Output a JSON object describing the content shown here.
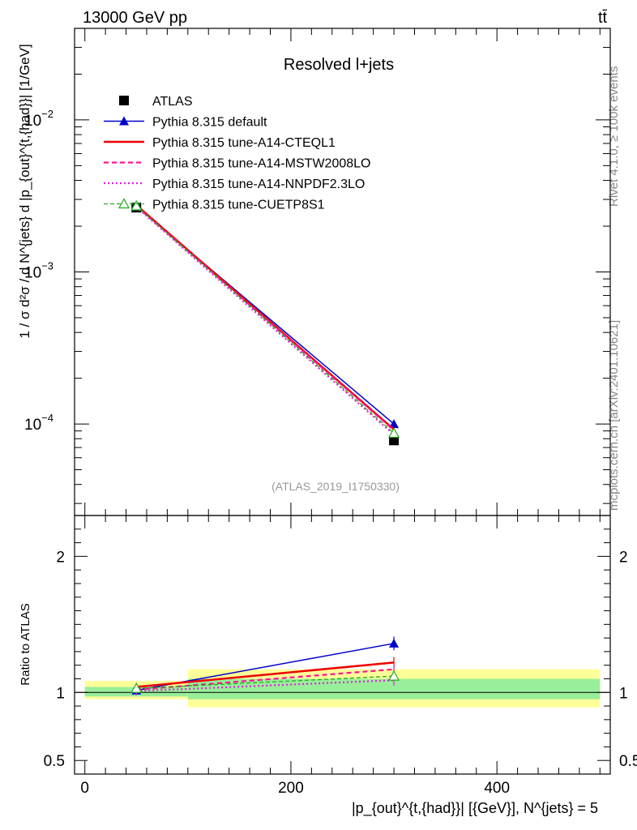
{
  "header": {
    "left": "13000 GeV pp",
    "right": "tt̄",
    "side_rivet": "Rivet 4.1.0, ≥ 100k events",
    "side_mcplots": "mcplots.cern.ch [arXiv:2401.10621]"
  },
  "chart_data": [
    {
      "type": "line",
      "panel": "main",
      "title": "Resolved l+jets",
      "watermark": "(ATLAS_2019_I1750330)",
      "ylabel": "1 / σ d²σ / d N^{jets} d |p_{out}^{t,{had}}| [1/GeV]",
      "yscale": "log",
      "ylim": [
        2.5e-05,
        0.04
      ],
      "yticks": [
        {
          "value": 0.0001,
          "base": "10",
          "exp": "−4"
        },
        {
          "value": 0.001,
          "base": "10",
          "exp": "−3"
        },
        {
          "value": 0.01,
          "base": "10",
          "exp": "−2"
        }
      ],
      "xlim": [
        -10,
        510
      ],
      "x": [
        50,
        300
      ],
      "series": [
        {
          "name": "ATLAS",
          "values": [
            0.00265,
            7.8e-05
          ],
          "color": "#000000"
        },
        {
          "name": "Pythia 8.315 default",
          "values": [
            0.0027,
            0.0001
          ],
          "color": "#0000cc"
        },
        {
          "name": "Pythia 8.315 tune-A14-CTEQL1",
          "values": [
            0.00275,
            9.2e-05
          ],
          "color": "#ee0000"
        },
        {
          "name": "Pythia 8.315 tune-A14-MSTW2008LO",
          "values": [
            0.0027,
            9.1e-05
          ],
          "color": "#ff1493"
        },
        {
          "name": "Pythia 8.315 tune-A14-NNPDF2.3LO",
          "values": [
            0.00268,
            8.5e-05
          ],
          "color": "#dd22dd"
        },
        {
          "name": "Pythia 8.315 tune-CUETP8S1",
          "values": [
            0.00272,
            8.7e-05
          ],
          "color": "#22aa22"
        }
      ]
    },
    {
      "type": "line",
      "panel": "ratio",
      "ylabel": "Ratio to ATLAS",
      "xlabel": "|p_{out}^{t,{had}}| [{GeV}], N^{jets} = 5",
      "ylim": [
        0.4,
        2.3
      ],
      "yticks": [
        {
          "value": 0.5,
          "label": "0.5"
        },
        {
          "value": 1,
          "label": "1"
        },
        {
          "value": 2,
          "label": "2"
        }
      ],
      "xticks": [
        {
          "value": 0,
          "label": "0"
        },
        {
          "value": 200,
          "label": "200"
        },
        {
          "value": 400,
          "label": "400"
        }
      ],
      "xlim": [
        -10,
        510
      ],
      "bands": [
        {
          "x": [
            0,
            100
          ],
          "stat": [
            0.97,
            1.04
          ],
          "total": [
            0.95,
            1.085
          ]
        },
        {
          "x": [
            100,
            500
          ],
          "stat": [
            0.95,
            1.1
          ],
          "total": [
            0.89,
            1.17
          ]
        }
      ],
      "x": [
        50,
        300
      ],
      "series": [
        {
          "name": "Pythia 8.315 default",
          "values": [
            1.015,
            1.36
          ],
          "errors": [
            0.03,
            0.05
          ]
        },
        {
          "name": "Pythia 8.315 tune-A14-CTEQL1",
          "values": [
            1.04,
            1.22
          ],
          "errors": [
            0.03,
            0.04
          ]
        },
        {
          "name": "Pythia 8.315 tune-A14-MSTW2008LO",
          "values": [
            1.02,
            1.17
          ],
          "errors": [
            0.03,
            0.04
          ]
        },
        {
          "name": "Pythia 8.315 tune-A14-NNPDF2.3LO",
          "values": [
            1.01,
            1.09
          ],
          "errors": [
            0.03,
            0.04
          ]
        },
        {
          "name": "Pythia 8.315 tune-CUETP8S1",
          "values": [
            1.03,
            1.12
          ],
          "errors": [
            0.03,
            0.04
          ]
        }
      ]
    }
  ]
}
